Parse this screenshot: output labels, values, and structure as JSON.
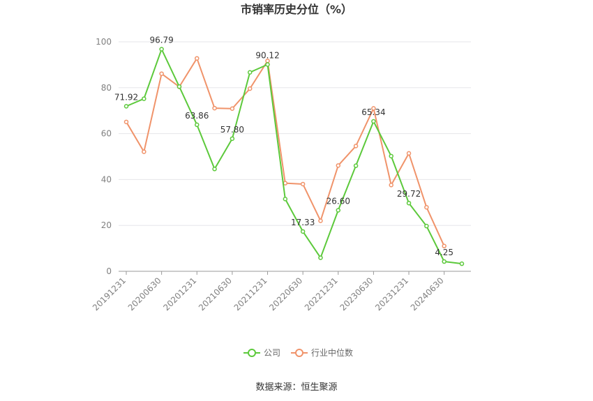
{
  "chart_data": {
    "type": "line",
    "title": "市销率历史分位（%）",
    "xlabel": "",
    "ylabel": "",
    "ylim": [
      0,
      100
    ],
    "yticks": [
      0,
      20,
      40,
      60,
      80,
      100
    ],
    "x": [
      "20191231",
      "20200331",
      "20200630",
      "20200930",
      "20201231",
      "20210331",
      "20210630",
      "20210930",
      "20211231",
      "20220331",
      "20220630",
      "20220930",
      "20221231",
      "20230331",
      "20230630",
      "20230930",
      "20231231",
      "20240331",
      "20240630",
      "20240930"
    ],
    "x_tick_labels": [
      "20191231",
      "20200630",
      "20201231",
      "20210630",
      "20211231",
      "20220630",
      "20221231",
      "20230630",
      "20231231",
      "20240630"
    ],
    "grid": "horizontal",
    "legend_position": "bottom",
    "series": [
      {
        "name": "公司",
        "color": "#5cc93b",
        "values": [
          71.92,
          75.2,
          96.79,
          80.5,
          63.86,
          44.6,
          57.8,
          86.7,
          90.12,
          31.5,
          17.33,
          5.9,
          26.6,
          46.0,
          65.34,
          50.2,
          29.72,
          19.7,
          4.25,
          3.3
        ],
        "labels": {
          "0": "71.92",
          "2": "96.79",
          "4": "63.86",
          "6": "57.80",
          "8": "90.12",
          "10": "17.33",
          "12": "26.60",
          "14": "65.34",
          "16": "29.72",
          "18": "4.25"
        }
      },
      {
        "name": "行业中位数",
        "color": "#f0936a",
        "values": [
          65.1,
          52.1,
          86.1,
          80.4,
          92.8,
          71.1,
          70.9,
          79.6,
          91.7,
          38.4,
          38.0,
          22.0,
          46.1,
          54.6,
          71.0,
          37.6,
          51.4,
          27.9,
          11.0,
          null
        ],
        "labels": {}
      }
    ]
  },
  "source": "数据来源：恒生聚源"
}
